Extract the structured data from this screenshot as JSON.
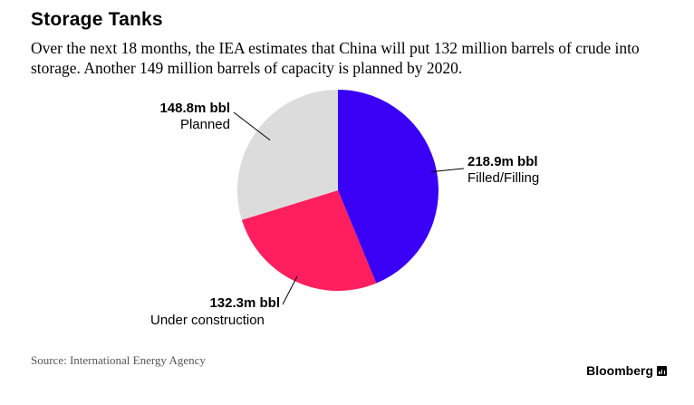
{
  "title": "Storage Tanks",
  "subtitle": "Over the next 18 months, the IEA estimates that China will put 132 million barrels of crude into storage. Another 149 million barrels of capacity is planned by 2020.",
  "source": "Source: International Energy Agency",
  "brand": {
    "name": "Bloomberg",
    "icon": "bloomberg-bars-icon"
  },
  "colors": {
    "filled": "#3a00f5",
    "construction": "#ff1f5e",
    "planned": "#dcdcdc"
  },
  "chart_data": {
    "type": "pie",
    "title": "Storage Tanks",
    "slices": [
      {
        "name": "Filled/Filling",
        "value": 218.9,
        "value_label": "218.9m bbl",
        "color": "#3a00f5"
      },
      {
        "name": "Under construction",
        "value": 132.3,
        "value_label": "132.3m bbl",
        "color": "#ff1f5e"
      },
      {
        "name": "Planned",
        "value": 148.8,
        "value_label": "148.8m bbl",
        "color": "#dcdcdc"
      }
    ],
    "unit": "m bbl",
    "start_angle": "12 o'clock",
    "direction": "clockwise"
  }
}
